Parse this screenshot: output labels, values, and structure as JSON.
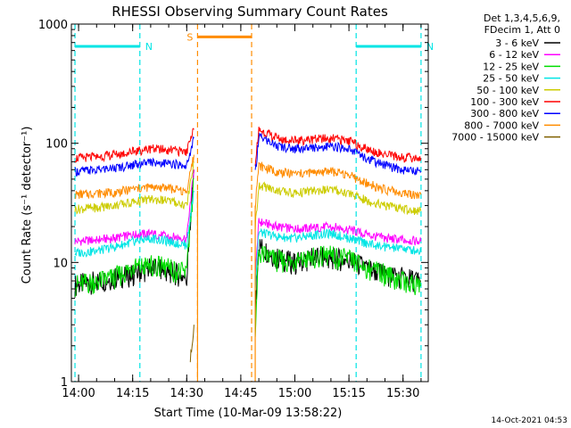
{
  "chart_data": {
    "type": "line",
    "title": "RHESSI Observing Summary Count Rates",
    "xlabel": "Start Time (10-Mar-09 13:58:22)",
    "ylabel": "Count Rate (s⁻¹ detector⁻¹)",
    "yscale": "log",
    "ylim": [
      1,
      1000
    ],
    "y_ticks": [
      1,
      10,
      100,
      1000
    ],
    "y_tick_labels": [
      "1",
      "10",
      "100",
      "1000"
    ],
    "x_start": "13:58:22",
    "xlim": [
      "13:58",
      "15:37"
    ],
    "x_ticks": [
      "14:00",
      "14:15",
      "14:30",
      "14:45",
      "15:00",
      "15:15",
      "15:30"
    ],
    "grid": false,
    "legend_position": "right, outside plot",
    "legend_header": [
      "Det 1,3,4,5,6,9,",
      "FDecim 1, Att 0"
    ],
    "series": [
      {
        "name": "3 - 6 keV",
        "color": "#000000",
        "x": [
          "13:59",
          "14:05",
          "14:10",
          "14:15",
          "14:20",
          "14:25",
          "14:30",
          "14:32",
          "14:49",
          "14:50",
          "14:55",
          "15:00",
          "15:05",
          "15:10",
          "15:15",
          "15:20",
          "15:25",
          "15:30",
          "15:35"
        ],
        "values": [
          6.5,
          7,
          7.5,
          8,
          9,
          8.5,
          7.5,
          60,
          4,
          14,
          11,
          10,
          11,
          11,
          10.5,
          9,
          8,
          7.5,
          7
        ]
      },
      {
        "name": "6 - 12 keV",
        "color": "#ff00ff",
        "x": [
          "13:59",
          "14:05",
          "14:10",
          "14:15",
          "14:20",
          "14:25",
          "14:30",
          "14:32",
          "14:49",
          "14:50",
          "14:55",
          "15:00",
          "15:05",
          "15:10",
          "15:15",
          "15:20",
          "15:25",
          "15:30",
          "15:35"
        ],
        "values": [
          15,
          15.5,
          16,
          17,
          17.5,
          16.5,
          16,
          60,
          8,
          22,
          20,
          19,
          19.5,
          20,
          19,
          17,
          16,
          15.5,
          15
        ]
      },
      {
        "name": "12 - 25 keV",
        "color": "#00dd00",
        "x": [
          "13:59",
          "14:05",
          "14:10",
          "14:15",
          "14:20",
          "14:25",
          "14:30",
          "14:32",
          "14:49",
          "14:50",
          "14:55",
          "15:00",
          "15:05",
          "15:10",
          "15:15",
          "15:20",
          "15:25",
          "15:30",
          "15:35"
        ],
        "values": [
          6.5,
          7,
          7.5,
          9,
          9.5,
          9,
          8,
          50,
          3,
          12,
          10.5,
          10,
          11,
          11.5,
          10.5,
          9,
          8,
          7,
          6.5
        ]
      },
      {
        "name": "25 - 50 keV",
        "color": "#00e5e5",
        "x": [
          "13:59",
          "14:05",
          "14:10",
          "14:15",
          "14:20",
          "14:25",
          "14:30",
          "14:32",
          "14:49",
          "14:50",
          "14:55",
          "15:00",
          "15:05",
          "15:10",
          "15:15",
          "15:20",
          "15:25",
          "15:30",
          "15:35"
        ],
        "values": [
          12,
          12.5,
          13.5,
          15,
          16,
          15,
          14,
          40,
          6,
          18,
          16.5,
          16,
          17,
          17.5,
          16,
          14.5,
          13.5,
          13,
          12.5
        ]
      },
      {
        "name": "50 - 100 keV",
        "color": "#cccc00",
        "x": [
          "13:59",
          "14:05",
          "14:10",
          "14:15",
          "14:20",
          "14:25",
          "14:30",
          "14:32",
          "14:49",
          "14:50",
          "14:55",
          "15:00",
          "15:05",
          "15:10",
          "15:15",
          "15:20",
          "15:25",
          "15:30",
          "15:35"
        ],
        "values": [
          28,
          29,
          30,
          32,
          34,
          33,
          30,
          70,
          20,
          45,
          40,
          38,
          40,
          41,
          38,
          33,
          30,
          28,
          27
        ]
      },
      {
        "name": "100 - 300 keV",
        "color": "#ff0000",
        "x": [
          "13:59",
          "14:05",
          "14:10",
          "14:15",
          "14:20",
          "14:25",
          "14:30",
          "14:32",
          "14:49",
          "14:50",
          "14:55",
          "15:00",
          "15:05",
          "15:10",
          "15:15",
          "15:20",
          "15:25",
          "15:30",
          "15:35"
        ],
        "values": [
          75,
          77,
          80,
          85,
          90,
          88,
          85,
          130,
          70,
          130,
          110,
          105,
          108,
          110,
          105,
          90,
          80,
          76,
          75
        ]
      },
      {
        "name": "300 - 800 keV",
        "color": "#0000ff",
        "x": [
          "13:59",
          "14:05",
          "14:10",
          "14:15",
          "14:20",
          "14:25",
          "14:30",
          "14:32",
          "14:49",
          "14:50",
          "14:55",
          "15:00",
          "15:05",
          "15:10",
          "15:15",
          "15:20",
          "15:25",
          "15:30",
          "15:35"
        ],
        "values": [
          58,
          60,
          62,
          66,
          70,
          68,
          65,
          110,
          55,
          115,
          95,
          90,
          92,
          95,
          90,
          75,
          65,
          60,
          58
        ]
      },
      {
        "name": "800 - 7000 keV",
        "color": "#ff8c00",
        "x": [
          "13:59",
          "14:05",
          "14:10",
          "14:15",
          "14:20",
          "14:25",
          "14:30",
          "14:32",
          "14:49",
          "14:50",
          "14:55",
          "15:00",
          "15:05",
          "15:10",
          "15:15",
          "15:20",
          "15:25",
          "15:30",
          "15:35"
        ],
        "values": [
          37,
          38,
          39,
          41,
          43,
          42,
          39,
          80,
          30,
          65,
          58,
          55,
          57,
          58,
          54,
          46,
          41,
          38,
          37
        ]
      },
      {
        "name": "7000 - 15000 keV",
        "color": "#806000",
        "x": [
          "14:31",
          "14:32"
        ],
        "values": [
          1.5,
          3
        ]
      }
    ],
    "annotations": [
      {
        "label": "N",
        "color": "#00e5e5",
        "x_start": "13:59",
        "x_end": "14:17",
        "y": 650
      },
      {
        "label": "N",
        "color": "#00e5e5",
        "x_start": "15:17",
        "x_end": "15:35",
        "y": 650
      },
      {
        "label": "S",
        "color": "#ff8c00",
        "x_start": "14:33",
        "x_end": "14:48",
        "y": 780
      }
    ],
    "footer": "14-Oct-2021 04:53"
  }
}
